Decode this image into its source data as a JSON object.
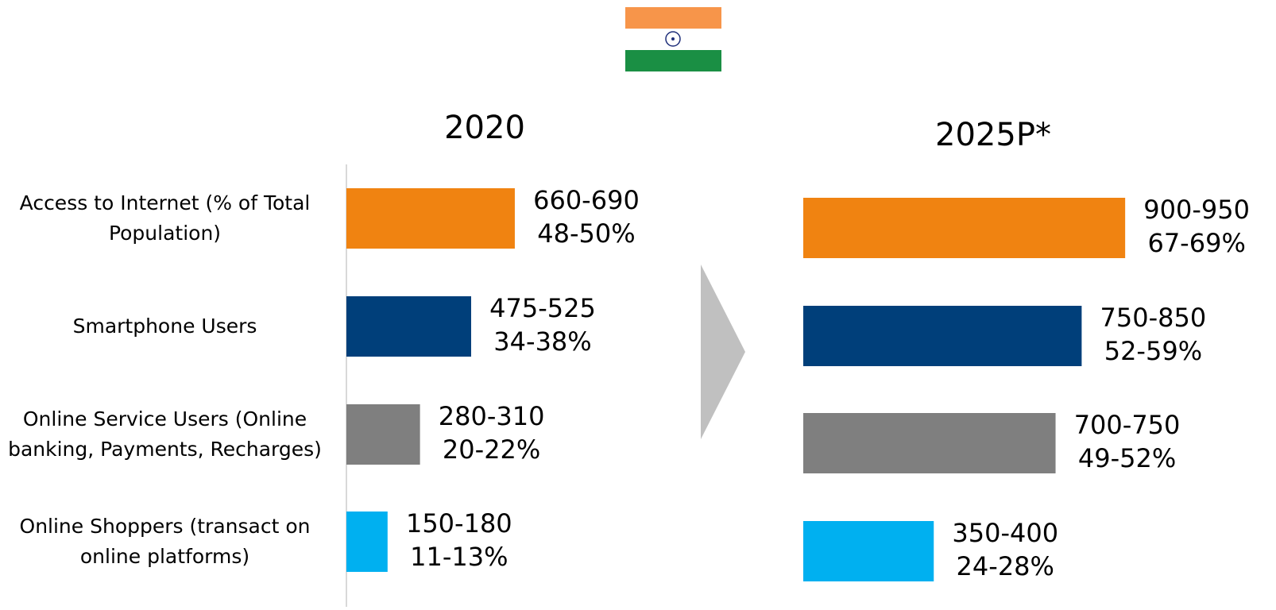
{
  "chart_data": [
    {
      "type": "bar",
      "orientation": "horizontal",
      "title": "2020",
      "categories": [
        "Access to Internet (% of Total Population)",
        "Smartphone Users",
        "Online Service Users (Online banking, Payments, Recharges)",
        "Online Shoppers (transact on online platforms)"
      ],
      "values": [
        [
          660,
          690
        ],
        [
          475,
          525
        ],
        [
          280,
          310
        ],
        [
          150,
          180
        ]
      ],
      "value_labels": [
        "660-690",
        "475-525",
        "280-310",
        "150-180"
      ],
      "shares": [
        [
          48,
          50
        ],
        [
          34,
          38
        ],
        [
          20,
          22
        ],
        [
          11,
          13
        ]
      ],
      "share_labels": [
        "48-50%",
        "34-38%",
        "20-22%",
        "11-13%"
      ],
      "colors": [
        "#f08311",
        "#003f7a",
        "#7f7f7f",
        "#00b0f0"
      ],
      "xlim": [
        0,
        1000
      ]
    },
    {
      "type": "bar",
      "orientation": "horizontal",
      "title": "2025P*",
      "values": [
        [
          900,
          950
        ],
        [
          750,
          850
        ],
        [
          700,
          750
        ],
        [
          350,
          400
        ]
      ],
      "value_labels": [
        "900-950",
        "750-850",
        "700-750",
        "350-400"
      ],
      "shares": [
        [
          67,
          69
        ],
        [
          52,
          59
        ],
        [
          49,
          52
        ],
        [
          24,
          28
        ]
      ],
      "share_labels": [
        "67-69%",
        "52-59%",
        "49-52%",
        "24-28%"
      ],
      "colors": [
        "#f08311",
        "#003f7a",
        "#7f7f7f",
        "#00b0f0"
      ],
      "xlim": [
        0,
        1000
      ]
    }
  ]
}
